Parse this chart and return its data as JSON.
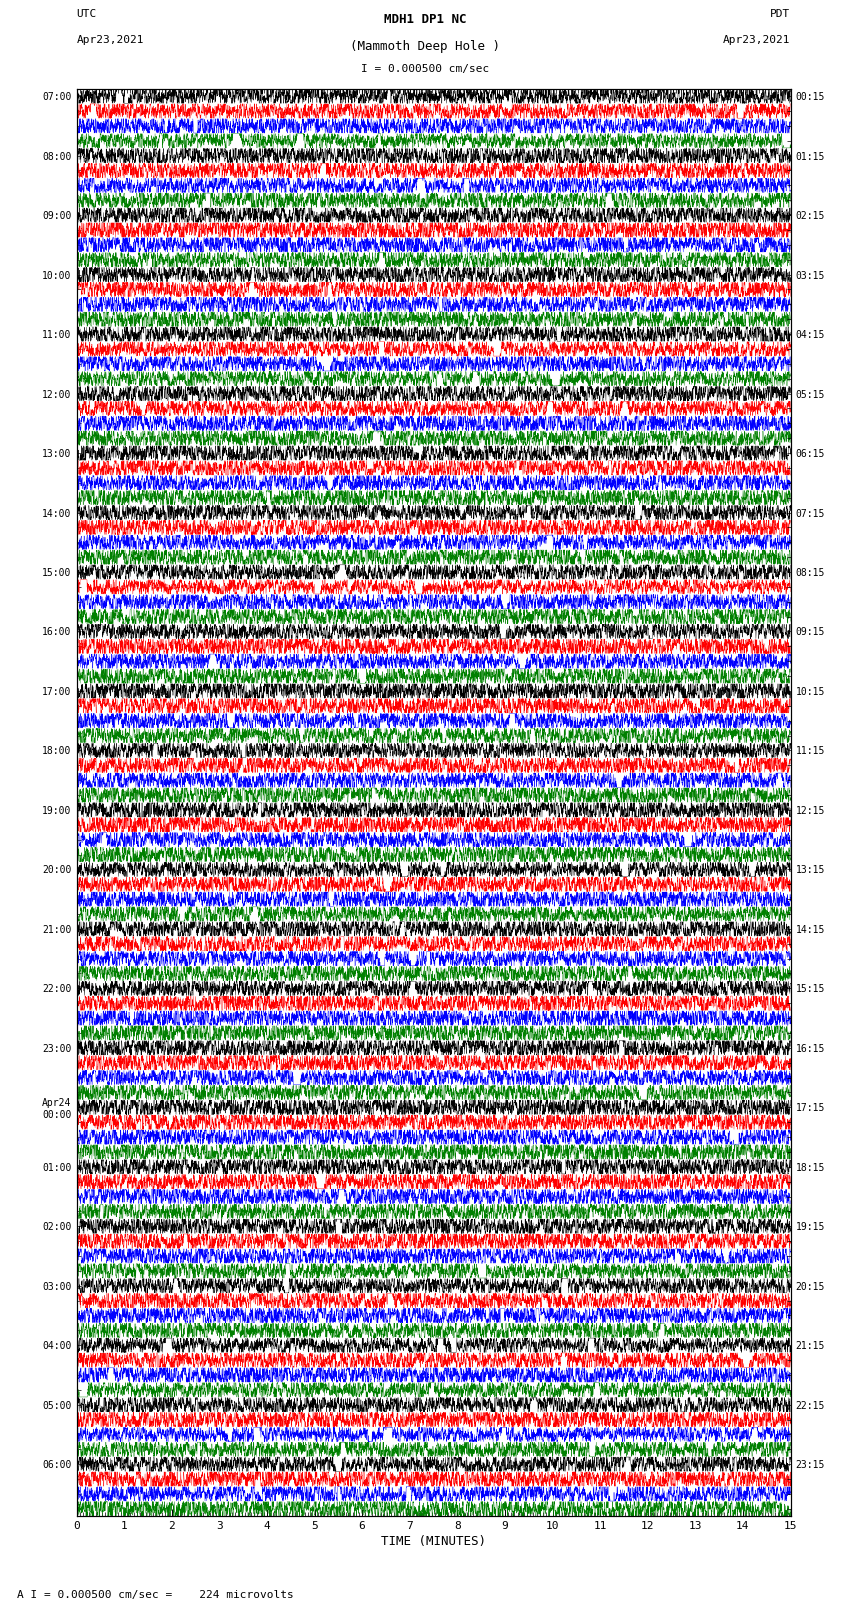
{
  "title_line1": "MDH1 DP1 NC",
  "title_line2": "(Mammoth Deep Hole )",
  "scale_text": "I = 0.000500 cm/sec",
  "bottom_label": "A I = 0.000500 cm/sec =    224 microvolts",
  "xlabel": "TIME (MINUTES)",
  "bg_color": "#ffffff",
  "trace_colors": [
    "black",
    "red",
    "blue",
    "green"
  ],
  "num_rows": 96,
  "minutes_per_row": 15,
  "figsize": [
    8.5,
    16.13
  ],
  "left_times_utc": [
    "07:00",
    "",
    "",
    "",
    "08:00",
    "",
    "",
    "",
    "09:00",
    "",
    "",
    "",
    "10:00",
    "",
    "",
    "",
    "11:00",
    "",
    "",
    "",
    "12:00",
    "",
    "",
    "",
    "13:00",
    "",
    "",
    "",
    "14:00",
    "",
    "",
    "",
    "15:00",
    "",
    "",
    "",
    "16:00",
    "",
    "",
    "",
    "17:00",
    "",
    "",
    "",
    "18:00",
    "",
    "",
    "",
    "19:00",
    "",
    "",
    "",
    "20:00",
    "",
    "",
    "",
    "21:00",
    "",
    "",
    "",
    "22:00",
    "",
    "",
    "",
    "23:00",
    "",
    "",
    "",
    "Apr24\n00:00",
    "",
    "",
    "",
    "01:00",
    "",
    "",
    "",
    "02:00",
    "",
    "",
    "",
    "03:00",
    "",
    "",
    "",
    "04:00",
    "",
    "",
    "",
    "05:00",
    "",
    "",
    "",
    "06:00",
    "",
    "",
    ""
  ],
  "right_times_pdt": [
    "00:15",
    "",
    "",
    "",
    "01:15",
    "",
    "",
    "",
    "02:15",
    "",
    "",
    "",
    "03:15",
    "",
    "",
    "",
    "04:15",
    "",
    "",
    "",
    "05:15",
    "",
    "",
    "",
    "06:15",
    "",
    "",
    "",
    "07:15",
    "",
    "",
    "",
    "08:15",
    "",
    "",
    "",
    "09:15",
    "",
    "",
    "",
    "10:15",
    "",
    "",
    "",
    "11:15",
    "",
    "",
    "",
    "12:15",
    "",
    "",
    "",
    "13:15",
    "",
    "",
    "",
    "14:15",
    "",
    "",
    "",
    "15:15",
    "",
    "",
    "",
    "16:15",
    "",
    "",
    "",
    "17:15",
    "",
    "",
    "",
    "18:15",
    "",
    "",
    "",
    "19:15",
    "",
    "",
    "",
    "20:15",
    "",
    "",
    "",
    "21:15",
    "",
    "",
    "",
    "22:15",
    "",
    "",
    "",
    "23:15",
    "",
    "",
    ""
  ]
}
